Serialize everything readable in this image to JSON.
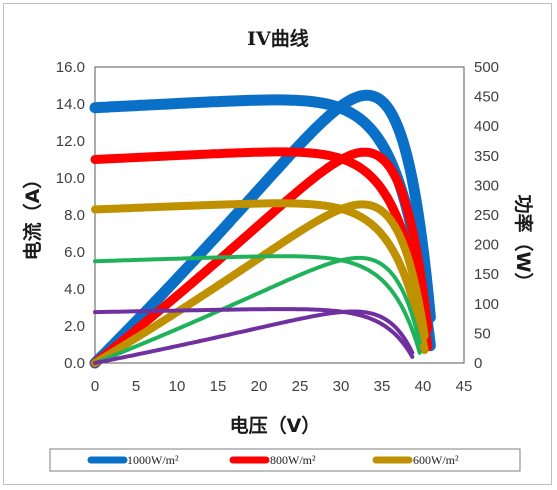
{
  "chart_data": {
    "type": "line",
    "title": "IV曲线",
    "xlabel": "电压（V）",
    "ylabel": "电流（A）",
    "y2label": "功率（W）",
    "xlim": [
      0,
      45
    ],
    "ylim": [
      0,
      16
    ],
    "y2lim": [
      0,
      500
    ],
    "xticks": [
      "0",
      "5",
      "10",
      "15",
      "20",
      "25",
      "30",
      "35",
      "40",
      "45"
    ],
    "yticks": [
      "0.0",
      "2.0",
      "4.0",
      "6.0",
      "8.0",
      "10.0",
      "12.0",
      "14.0",
      "16.0"
    ],
    "y2ticks": [
      "0",
      "50",
      "100",
      "150",
      "200",
      "250",
      "300",
      "350",
      "400",
      "450",
      "500"
    ],
    "grid": false,
    "legend_position": "bottom",
    "legend": [
      "1000W/m²",
      "800W/m²",
      "600W/m²"
    ],
    "series": [
      {
        "name": "1000W/m²",
        "color": "#0a6fc6",
        "width": 11,
        "kind": "current",
        "isc": 13.8,
        "vmp": 32,
        "imp": 13.3,
        "voc": 40.9
      },
      {
        "name": "1000W/m²",
        "color": "#0a6fc6",
        "width": 11,
        "kind": "power",
        "isc": 13.8,
        "vmp": 34.6,
        "imp": 12.9,
        "voc": 40.9
      },
      {
        "name": "800W/m²",
        "color": "#ff0000",
        "width": 9,
        "kind": "current",
        "isc": 11.0,
        "vmp": 32,
        "imp": 10.65,
        "voc": 40.6
      },
      {
        "name": "800W/m²",
        "color": "#ff0000",
        "width": 9,
        "kind": "power",
        "isc": 11.0,
        "vmp": 34.4,
        "imp": 10.2,
        "voc": 40.6
      },
      {
        "name": "600W/m²",
        "color": "#bf9000",
        "width": 8,
        "kind": "current",
        "isc": 8.3,
        "vmp": 32,
        "imp": 8.0,
        "voc": 40.2
      },
      {
        "name": "600W/m²",
        "color": "#bf9000",
        "width": 8,
        "kind": "power",
        "isc": 8.3,
        "vmp": 34.2,
        "imp": 7.7,
        "voc": 40.2
      },
      {
        "name": "",
        "color": "#1fb25a",
        "width": 4,
        "kind": "current",
        "isc": 5.5,
        "vmp": 32,
        "imp": 5.3,
        "voc": 39.6
      },
      {
        "name": "",
        "color": "#1fb25a",
        "width": 4,
        "kind": "power",
        "isc": 5.5,
        "vmp": 34.0,
        "imp": 5.1,
        "voc": 39.6
      },
      {
        "name": "",
        "color": "#7030a0",
        "width": 4,
        "kind": "current",
        "isc": 2.75,
        "vmp": 32,
        "imp": 2.62,
        "voc": 38.7
      },
      {
        "name": "",
        "color": "#7030a0",
        "width": 4,
        "kind": "power",
        "isc": 2.75,
        "vmp": 33.6,
        "imp": 2.5,
        "voc": 38.7
      }
    ]
  }
}
